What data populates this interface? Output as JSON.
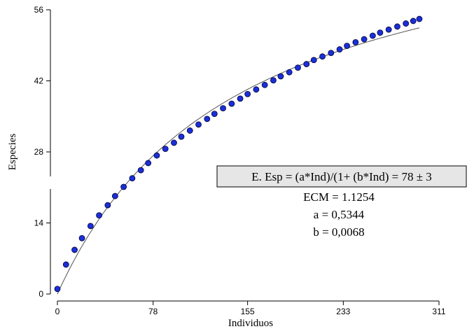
{
  "chart_data": {
    "type": "scatter",
    "xlabel": "Individuos",
    "ylabel": "Especies",
    "xlim": [
      0,
      311
    ],
    "ylim": [
      0,
      56
    ],
    "xticks": [
      "0",
      "78",
      "155",
      "233",
      "311"
    ],
    "yticks": [
      "0",
      "14",
      "28",
      "42",
      "56"
    ],
    "grid": false,
    "series": [
      {
        "values": [
          [
            0,
            1.0
          ],
          [
            7,
            5.8
          ],
          [
            14,
            8.7
          ],
          [
            20,
            11.0
          ],
          [
            27,
            13.4
          ],
          [
            34,
            15.5
          ],
          [
            41,
            17.5
          ],
          [
            47,
            19.3
          ],
          [
            54,
            21.1
          ],
          [
            61,
            22.8
          ],
          [
            68,
            24.4
          ],
          [
            74,
            25.8
          ],
          [
            81,
            27.3
          ],
          [
            88,
            28.6
          ],
          [
            95,
            29.8
          ],
          [
            101,
            31.0
          ],
          [
            108,
            32.2
          ],
          [
            115,
            33.4
          ],
          [
            122,
            34.5
          ],
          [
            128,
            35.5
          ],
          [
            135,
            36.6
          ],
          [
            142,
            37.5
          ],
          [
            149,
            38.5
          ],
          [
            155,
            39.4
          ],
          [
            162,
            40.3
          ],
          [
            169,
            41.2
          ],
          [
            176,
            42.1
          ],
          [
            182,
            42.9
          ],
          [
            189,
            43.7
          ],
          [
            196,
            44.6
          ],
          [
            203,
            45.3
          ],
          [
            209,
            46.1
          ],
          [
            216,
            46.8
          ],
          [
            223,
            47.5
          ],
          [
            230,
            48.2
          ],
          [
            236,
            48.9
          ],
          [
            243,
            49.6
          ],
          [
            250,
            50.2
          ],
          [
            257,
            50.9
          ],
          [
            263,
            51.5
          ],
          [
            270,
            52.1
          ],
          [
            277,
            52.7
          ],
          [
            284,
            53.3
          ],
          [
            290,
            53.8
          ],
          [
            295,
            54.2
          ]
        ]
      },
      {
        "type": "line",
        "formula": "a*x/(1+b*x)",
        "a": 0.5344,
        "b": 0.0068,
        "xrange": [
          0,
          295
        ]
      }
    ],
    "annotations": {
      "equation": "E. Esp = (a*Ind)/(1+ (b*Ind) = 78 ± 3",
      "ecm": "ECM = 1.1254",
      "a": "a = 0,5344",
      "b": "b = 0,0068"
    },
    "colors": {
      "points_fill": "#1b2fd8",
      "points_stroke": "#000033",
      "fit_line": "#555555",
      "equation_box_fill": "#e6e6e6"
    }
  }
}
